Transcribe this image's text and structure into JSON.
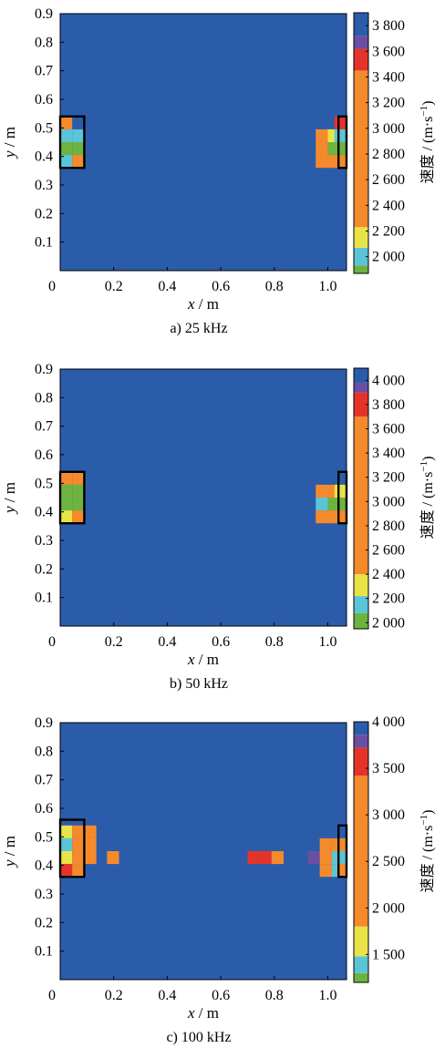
{
  "chart_data": [
    {
      "type": "heatmap",
      "caption": "a)  25 kHz",
      "xlabel_var": "x",
      "xlabel_unit": " / m",
      "ylabel_var": "y",
      "ylabel_unit": " / m",
      "xticks": [
        0,
        0.2,
        0.4,
        0.6,
        0.8,
        1.0
      ],
      "xtick_labels": [
        "0",
        "0.2",
        "0.4",
        "0.6",
        "0.8",
        "1.0"
      ],
      "yticks": [
        0.1,
        0.2,
        0.3,
        0.4,
        0.5,
        0.6,
        0.7,
        0.8,
        0.9
      ],
      "ytick_labels": [
        "0.1",
        "0.2",
        "0.3",
        "0.4",
        "0.5",
        "0.6",
        "0.7",
        "0.8",
        "0.9"
      ],
      "xlim": [
        0,
        1.07
      ],
      "ylim": [
        0,
        0.9
      ],
      "cell_size": 0.045,
      "colorbar_label": "速度 / (m·s",
      "colorbar_label_sup": "−1",
      "colorbar_label_end": ")",
      "colorbar_range": [
        1870,
        3900
      ],
      "colorbar_ticks": [
        2000,
        2200,
        2400,
        2600,
        2800,
        3000,
        3200,
        3400,
        3600,
        3800
      ],
      "colorbar_tick_labels": [
        "2 000",
        "2 200",
        "2 400",
        "2 600",
        "2 800",
        "3 000",
        "3 200",
        "3 400",
        "3 600",
        "3 800"
      ],
      "colorbar_bands": [
        {
          "from": 1870,
          "to": 1930,
          "color": "#6db33f"
        },
        {
          "from": 1930,
          "to": 2070,
          "color": "#5bc5d8"
        },
        {
          "from": 2070,
          "to": 2230,
          "color": "#e8e447"
        },
        {
          "from": 2230,
          "to": 3450,
          "color": "#f58a2c"
        },
        {
          "from": 3450,
          "to": 3620,
          "color": "#e5332a"
        },
        {
          "from": 3620,
          "to": 3720,
          "color": "#6a4fa3"
        },
        {
          "from": 3720,
          "to": 3900,
          "color": "#2a5caa"
        }
      ],
      "background_value": 3800,
      "cells": [
        {
          "x": 0.0225,
          "y": 0.5175,
          "value": 2700
        },
        {
          "x": 0.0225,
          "y": 0.4725,
          "value": 2000
        },
        {
          "x": 0.0225,
          "y": 0.4275,
          "value": 1900
        },
        {
          "x": 0.0225,
          "y": 0.3825,
          "value": 2000
        },
        {
          "x": 0.0675,
          "y": 0.4725,
          "value": 2000
        },
        {
          "x": 0.0675,
          "y": 0.4275,
          "value": 1900
        },
        {
          "x": 0.0675,
          "y": 0.3825,
          "value": 2700
        },
        {
          "x": 0.9775,
          "y": 0.4725,
          "value": 2700
        },
        {
          "x": 0.9775,
          "y": 0.4275,
          "value": 2700
        },
        {
          "x": 0.9775,
          "y": 0.3825,
          "value": 2700
        },
        {
          "x": 1.0225,
          "y": 0.4725,
          "value": 2150
        },
        {
          "x": 1.0225,
          "y": 0.4275,
          "value": 1900
        },
        {
          "x": 1.0225,
          "y": 0.3825,
          "value": 2700
        },
        {
          "x": 1.0475,
          "y": 0.5175,
          "value": 3500
        },
        {
          "x": 1.0475,
          "y": 0.4725,
          "value": 2000
        },
        {
          "x": 1.0475,
          "y": 0.4275,
          "value": 1900
        },
        {
          "x": 1.0475,
          "y": 0.3825,
          "value": 2700
        }
      ],
      "boxes": [
        {
          "x0": 0.0,
          "x1": 0.09,
          "y0": 0.36,
          "y1": 0.54
        },
        {
          "x0": 1.04,
          "x1": 1.07,
          "y0": 0.36,
          "y1": 0.54
        }
      ]
    },
    {
      "type": "heatmap",
      "caption": "b)  50 kHz",
      "xlabel_var": "x",
      "xlabel_unit": " / m",
      "ylabel_var": "y",
      "ylabel_unit": " / m",
      "xticks": [
        0,
        0.2,
        0.4,
        0.6,
        0.8,
        1.0
      ],
      "xtick_labels": [
        "0",
        "0.2",
        "0.4",
        "0.6",
        "0.8",
        "1.0"
      ],
      "yticks": [
        0.1,
        0.2,
        0.3,
        0.4,
        0.5,
        0.6,
        0.7,
        0.8,
        0.9
      ],
      "ytick_labels": [
        "0.1",
        "0.2",
        "0.3",
        "0.4",
        "0.5",
        "0.6",
        "0.7",
        "0.8",
        "0.9"
      ],
      "xlim": [
        0,
        1.07
      ],
      "ylim": [
        0,
        0.9
      ],
      "cell_size": 0.045,
      "colorbar_label": "速度 / (m·s",
      "colorbar_label_sup": "−1",
      "colorbar_label_end": ")",
      "colorbar_range": [
        1950,
        4100
      ],
      "colorbar_ticks": [
        2000,
        2200,
        2400,
        2600,
        2800,
        3000,
        3200,
        3400,
        3600,
        3800,
        4000
      ],
      "colorbar_tick_labels": [
        "2 000",
        "2 200",
        "2 400",
        "2 600",
        "2 800",
        "3 000",
        "3 200",
        "3 400",
        "3 600",
        "3 800",
        "4 000"
      ],
      "colorbar_bands": [
        {
          "from": 1950,
          "to": 2080,
          "color": "#6db33f"
        },
        {
          "from": 2080,
          "to": 2220,
          "color": "#5bc5d8"
        },
        {
          "from": 2220,
          "to": 2400,
          "color": "#e8e447"
        },
        {
          "from": 2400,
          "to": 3700,
          "color": "#f58a2c"
        },
        {
          "from": 3700,
          "to": 3900,
          "color": "#e5332a"
        },
        {
          "from": 3900,
          "to": 3980,
          "color": "#6a4fa3"
        },
        {
          "from": 3980,
          "to": 4100,
          "color": "#2a5caa"
        }
      ],
      "background_value": 4050,
      "cells": [
        {
          "x": 0.0225,
          "y": 0.5175,
          "value": 3000
        },
        {
          "x": 0.0225,
          "y": 0.4725,
          "value": 2000
        },
        {
          "x": 0.0225,
          "y": 0.4275,
          "value": 2000
        },
        {
          "x": 0.0225,
          "y": 0.3825,
          "value": 2300
        },
        {
          "x": 0.0675,
          "y": 0.5175,
          "value": 3000
        },
        {
          "x": 0.0675,
          "y": 0.4725,
          "value": 2000
        },
        {
          "x": 0.0675,
          "y": 0.4275,
          "value": 2000
        },
        {
          "x": 0.0675,
          "y": 0.3825,
          "value": 3000
        },
        {
          "x": 0.9775,
          "y": 0.4725,
          "value": 3000
        },
        {
          "x": 0.9775,
          "y": 0.4275,
          "value": 2150
        },
        {
          "x": 0.9775,
          "y": 0.3825,
          "value": 3000
        },
        {
          "x": 1.0225,
          "y": 0.4725,
          "value": 3000
        },
        {
          "x": 1.0225,
          "y": 0.4275,
          "value": 2000
        },
        {
          "x": 1.0225,
          "y": 0.3825,
          "value": 3000
        },
        {
          "x": 1.0475,
          "y": 0.4725,
          "value": 2300
        },
        {
          "x": 1.0475,
          "y": 0.4275,
          "value": 2000
        },
        {
          "x": 1.0475,
          "y": 0.3825,
          "value": 3000
        }
      ],
      "boxes": [
        {
          "x0": 0.0,
          "x1": 0.09,
          "y0": 0.36,
          "y1": 0.54
        },
        {
          "x0": 1.04,
          "x1": 1.07,
          "y0": 0.36,
          "y1": 0.54
        }
      ]
    },
    {
      "type": "heatmap",
      "caption": "c)  100 kHz",
      "xlabel_var": "x",
      "xlabel_unit": " / m",
      "ylabel_var": "y",
      "ylabel_unit": " / m",
      "xticks": [
        0,
        0.2,
        0.4,
        0.6,
        0.8,
        1.0
      ],
      "xtick_labels": [
        "0",
        "0.2",
        "0.4",
        "0.6",
        "0.8",
        "1.0"
      ],
      "yticks": [
        0.1,
        0.2,
        0.3,
        0.4,
        0.5,
        0.6,
        0.7,
        0.8,
        0.9
      ],
      "ytick_labels": [
        "0.1",
        "0.2",
        "0.3",
        "0.4",
        "0.5",
        "0.6",
        "0.7",
        "0.8",
        "0.9"
      ],
      "xlim": [
        0,
        1.07
      ],
      "ylim": [
        0,
        0.9
      ],
      "cell_size": 0.045,
      "colorbar_label": "速度 / (m·s",
      "colorbar_label_sup": "−1",
      "colorbar_label_end": ")",
      "colorbar_range": [
        1200,
        4000
      ],
      "colorbar_ticks": [
        1500,
        2000,
        2500,
        3000,
        3500,
        4000
      ],
      "colorbar_tick_labels": [
        "1 500",
        "2 000",
        "2 500",
        "3 000",
        "3 500",
        "4 000"
      ],
      "colorbar_bands": [
        {
          "from": 1200,
          "to": 1300,
          "color": "#6db33f"
        },
        {
          "from": 1300,
          "to": 1480,
          "color": "#5bc5d8"
        },
        {
          "from": 1480,
          "to": 1800,
          "color": "#e8e447"
        },
        {
          "from": 1800,
          "to": 3420,
          "color": "#f58a2c"
        },
        {
          "from": 3420,
          "to": 3720,
          "color": "#e5332a"
        },
        {
          "from": 3720,
          "to": 3860,
          "color": "#6a4fa3"
        },
        {
          "from": 3860,
          "to": 4000,
          "color": "#2a5caa"
        }
      ],
      "background_value": 3950,
      "cells": [
        {
          "x": 0.0225,
          "y": 0.5175,
          "value": 1650
        },
        {
          "x": 0.0225,
          "y": 0.4725,
          "value": 1400
        },
        {
          "x": 0.0225,
          "y": 0.4275,
          "value": 1650
        },
        {
          "x": 0.0225,
          "y": 0.3825,
          "value": 3500
        },
        {
          "x": 0.0675,
          "y": 0.5175,
          "value": 2500
        },
        {
          "x": 0.0675,
          "y": 0.4725,
          "value": 2500
        },
        {
          "x": 0.0675,
          "y": 0.4275,
          "value": 2500
        },
        {
          "x": 0.0675,
          "y": 0.3825,
          "value": 2500
        },
        {
          "x": 0.1125,
          "y": 0.5175,
          "value": 2500
        },
        {
          "x": 0.1125,
          "y": 0.4725,
          "value": 2500
        },
        {
          "x": 0.1125,
          "y": 0.4275,
          "value": 2500
        },
        {
          "x": 0.1975,
          "y": 0.4275,
          "value": 2500
        },
        {
          "x": 0.7225,
          "y": 0.4275,
          "value": 3500
        },
        {
          "x": 0.7675,
          "y": 0.4275,
          "value": 3500
        },
        {
          "x": 0.8125,
          "y": 0.4275,
          "value": 2500
        },
        {
          "x": 0.9475,
          "y": 0.4275,
          "value": 3800
        },
        {
          "x": 0.9925,
          "y": 0.4725,
          "value": 2500
        },
        {
          "x": 0.9925,
          "y": 0.4275,
          "value": 2500
        },
        {
          "x": 0.9925,
          "y": 0.3825,
          "value": 2500
        },
        {
          "x": 1.0375,
          "y": 0.4725,
          "value": 2500
        },
        {
          "x": 1.0375,
          "y": 0.4275,
          "value": 1400
        },
        {
          "x": 1.0375,
          "y": 0.3825,
          "value": 1400
        },
        {
          "x": 1.0575,
          "y": 0.4725,
          "value": 2500
        },
        {
          "x": 1.0575,
          "y": 0.4275,
          "value": 1400
        },
        {
          "x": 1.0575,
          "y": 0.3825,
          "value": 2500
        }
      ],
      "boxes": [
        {
          "x0": 0.0,
          "x1": 0.09,
          "y0": 0.36,
          "y1": 0.56
        },
        {
          "x0": 1.04,
          "x1": 1.07,
          "y0": 0.36,
          "y1": 0.54
        }
      ]
    }
  ]
}
